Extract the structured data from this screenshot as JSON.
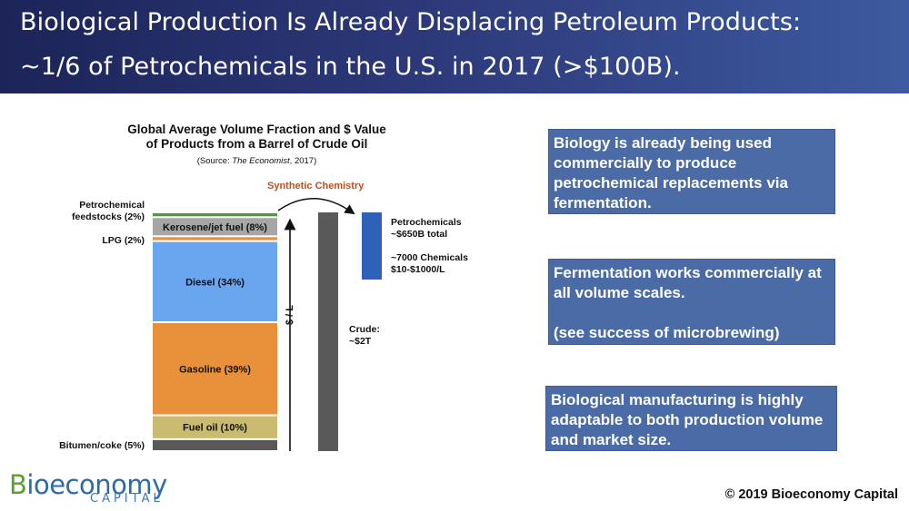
{
  "header": {
    "title_line1": "Biological Production Is Already Displacing Petroleum Products:",
    "title_line2": "~1/6 of Petrochemicals in the U.S. in 2017 (>$100B)."
  },
  "chart_data": {
    "type": "bar",
    "title": "Global Average Volume Fraction and $ Value of Products from a Barrel of Crude Oil",
    "title_line1": "Global Average Volume Fraction and $ Value",
    "title_line2": "of Products from a Barrel of Crude Oil",
    "source_prefix": "(Source: ",
    "source_italic": "The Economist",
    "source_suffix": ", 2017)",
    "stacked_segments": [
      {
        "label": "Bitumen/coke (5%)",
        "value": 5,
        "color": "#595959",
        "label_position": "left"
      },
      {
        "label": "Fuel oil (10%)",
        "value": 10,
        "color": "#c9bb70",
        "label_position": "inside"
      },
      {
        "label": "Gasoline (39%)",
        "value": 39,
        "color": "#e8913a",
        "label_position": "inside"
      },
      {
        "label": "Diesel (34%)",
        "value": 34,
        "color": "#6aa6f0",
        "label_position": "inside"
      },
      {
        "label": "LPG (2%)",
        "value": 2,
        "color": "#e8913a",
        "label_position": "left"
      },
      {
        "label": "Kerosene/jet fuel (8%)",
        "value": 8,
        "color": "#a6a6a6",
        "label_position": "inside"
      },
      {
        "label": "Petrochemical feedstocks (2%)",
        "label_line1": "Petrochemical",
        "label_line2": "feedstocks (2%)",
        "value": 2,
        "color": "#4e9a3c",
        "label_position": "left"
      }
    ],
    "value_bars": [
      {
        "name": "Crude",
        "label_line1": "Crude:",
        "label_line2": "~$2T",
        "color": "#595959"
      },
      {
        "name": "Petrochemicals",
        "label_line1": "Petrochemicals",
        "label_line2": "~$650B total",
        "label_line3": "~7000 Chemicals",
        "label_line4": "$10-$1000/L",
        "color": "#2e62b8"
      }
    ],
    "axis_label": "$ / L",
    "annotation": "Synthetic Chemistry",
    "annotation_color": "#c0501f"
  },
  "callouts": [
    {
      "text": "Biology is already being used commercially to produce petrochemical replacements via fermentation."
    },
    {
      "text_line1": "Fermentation works commercially at all volume scales.",
      "text_line2": "(see success of microbrewing)"
    },
    {
      "text": "Biological manufacturing is highly adaptable to both production volume and market size."
    }
  ],
  "footer": {
    "logo_main": "Bioeconomy",
    "logo_b": "B",
    "logo_rest": "ioeconomy",
    "logo_sub": "CAPITAL",
    "copyright": "© 2019 Bioeconomy Capital"
  }
}
